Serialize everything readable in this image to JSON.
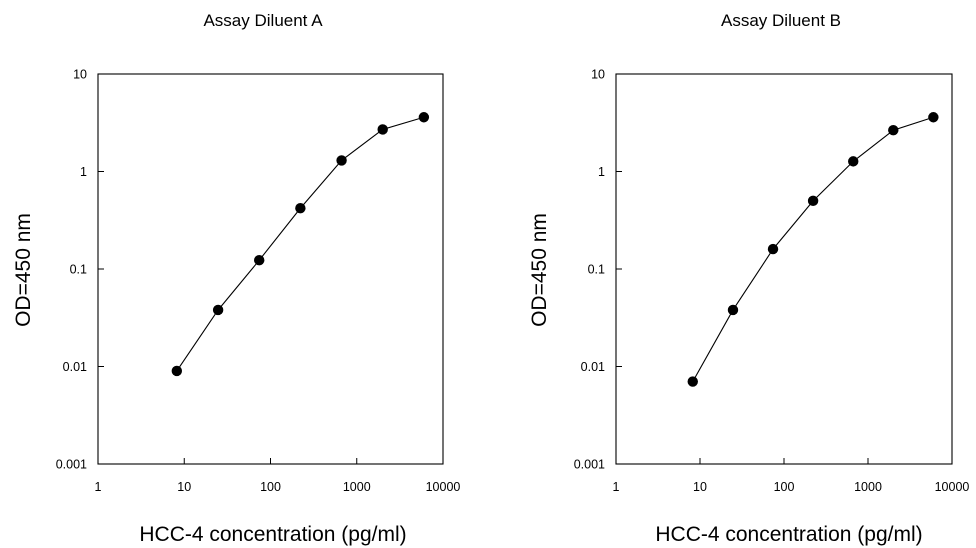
{
  "chart_data": [
    {
      "type": "line",
      "title": "Assay Diluent A",
      "xlabel": "HCC-4 concentration (pg/ml)",
      "ylabel": "OD=450 nm",
      "xscale": "log",
      "yscale": "log",
      "xlim": [
        1,
        10000
      ],
      "ylim": [
        0.001,
        10
      ],
      "xticks": [
        "1",
        "10",
        "100",
        "1000",
        "10000"
      ],
      "yticks": [
        "0.001",
        "0.01",
        "0.1",
        "1",
        "10"
      ],
      "grid": false,
      "series": [
        {
          "x": [
            8.2,
            24.7,
            74,
            222,
            667,
            2000,
            6000
          ],
          "y": [
            0.009,
            0.038,
            0.123,
            0.42,
            1.3,
            2.7,
            3.6
          ]
        }
      ]
    },
    {
      "type": "line",
      "title": "Assay Diluent B",
      "xlabel": "HCC-4 concentration (pg/ml)",
      "ylabel": "OD=450 nm",
      "xscale": "log",
      "yscale": "log",
      "xlim": [
        1,
        10000
      ],
      "ylim": [
        0.001,
        10
      ],
      "xticks": [
        "1",
        "10",
        "100",
        "1000",
        "10000"
      ],
      "yticks": [
        "0.001",
        "0.01",
        "0.1",
        "1",
        "10"
      ],
      "grid": false,
      "series": [
        {
          "x": [
            8.2,
            24.7,
            74,
            222,
            667,
            2000,
            6000
          ],
          "y": [
            0.007,
            0.038,
            0.16,
            0.5,
            1.27,
            2.65,
            3.6
          ]
        }
      ]
    }
  ]
}
